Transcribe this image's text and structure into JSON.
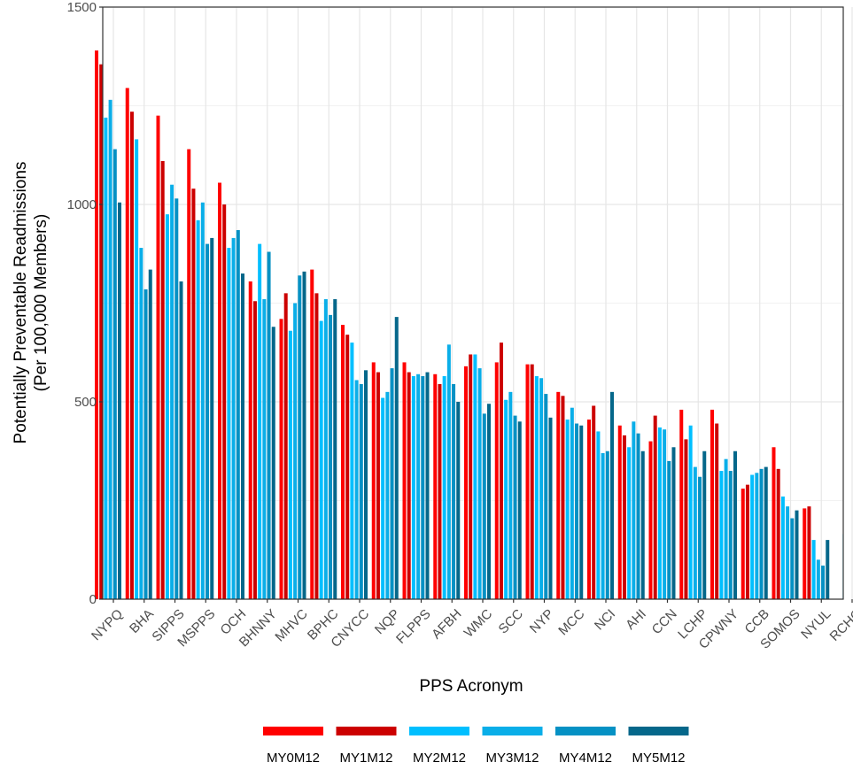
{
  "chart_data": {
    "type": "bar",
    "ylabel_line1": "Potentially Preventable Readmissions",
    "ylabel_line2": "(Per 100,000 Members)",
    "xlabel": "PPS Acronym",
    "ylim": [
      0,
      1500
    ],
    "yticks": [
      0,
      500,
      1000,
      1500
    ],
    "grid": true,
    "legend_position": "bottom",
    "categories": [
      "NYPQ",
      "BHA",
      "SIPPS",
      "MSPPS",
      "OCH",
      "BHNNY",
      "MHVC",
      "BPHC",
      "CNYCC",
      "NQP",
      "FLPPS",
      "AFBH",
      "WMC",
      "SCC",
      "NYP",
      "MCC",
      "NCI",
      "AHI",
      "CCN",
      "LCHP",
      "CPWNY",
      "CCB",
      "SOMOS",
      "NYUL",
      "RCHC"
    ],
    "series": [
      {
        "name": "MY0M12",
        "color": "#ff0000",
        "values": [
          1390,
          1295,
          1225,
          1140,
          1055,
          805,
          710,
          835,
          695,
          600,
          600,
          570,
          590,
          600,
          595,
          525,
          455,
          440,
          400,
          480,
          480,
          280,
          385,
          230,
          null
        ]
      },
      {
        "name": "MY1M12",
        "color": "#cc0000",
        "values": [
          1355,
          1235,
          1110,
          1040,
          1000,
          755,
          775,
          775,
          670,
          575,
          575,
          545,
          620,
          650,
          595,
          515,
          490,
          415,
          465,
          405,
          445,
          290,
          330,
          235,
          null
        ]
      },
      {
        "name": "MY2M12",
        "color": "#00bfff",
        "values": [
          1220,
          1165,
          975,
          960,
          890,
          900,
          680,
          705,
          650,
          510,
          565,
          565,
          620,
          505,
          565,
          455,
          425,
          385,
          435,
          440,
          325,
          315,
          260,
          150,
          165
        ]
      },
      {
        "name": "MY3M12",
        "color": "#0aaee8",
        "values": [
          1265,
          890,
          1050,
          1005,
          915,
          760,
          750,
          760,
          555,
          525,
          570,
          645,
          585,
          525,
          560,
          485,
          370,
          450,
          430,
          335,
          355,
          320,
          235,
          100,
          170
        ]
      },
      {
        "name": "MY4M12",
        "color": "#0591c4",
        "values": [
          1140,
          785,
          1015,
          900,
          935,
          880,
          820,
          720,
          545,
          585,
          565,
          545,
          470,
          465,
          520,
          445,
          375,
          420,
          350,
          310,
          325,
          330,
          205,
          85,
          115
        ]
      },
      {
        "name": "MY5M12",
        "color": "#05678a",
        "values": [
          1005,
          835,
          805,
          915,
          825,
          690,
          830,
          760,
          580,
          715,
          575,
          500,
          495,
          450,
          460,
          440,
          525,
          375,
          385,
          375,
          375,
          335,
          225,
          150,
          115
        ]
      }
    ]
  }
}
